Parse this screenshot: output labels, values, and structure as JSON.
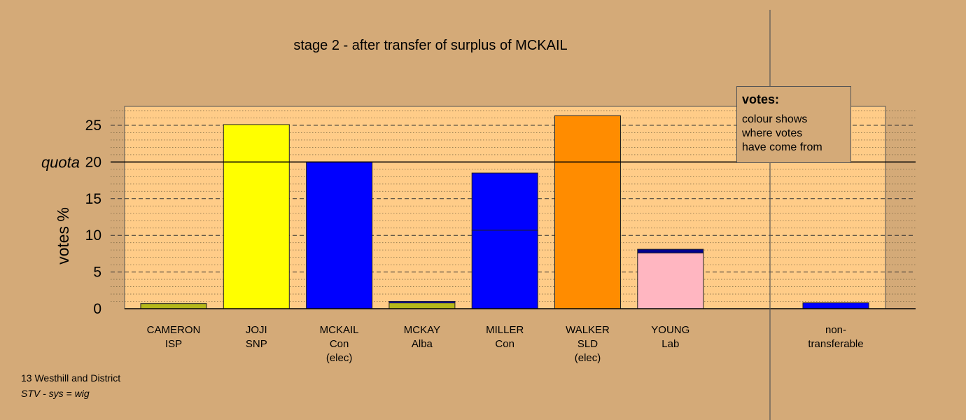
{
  "chart_data": {
    "type": "bar",
    "title": "stage 2 - after transfer of surplus of MCKAIL",
    "ylabel": "votes %",
    "quota_label": "quota",
    "quota": 20,
    "ylim": [
      0,
      27.5
    ],
    "yticks": [
      0,
      5,
      10,
      15,
      20,
      25
    ],
    "grid": true,
    "candidates": [
      {
        "name": "CAMERON",
        "party": "ISP",
        "note": "",
        "segments": [
          {
            "value": 0.7,
            "color": "#b5b81c"
          }
        ]
      },
      {
        "name": "JOJI",
        "party": "SNP",
        "note": "",
        "segments": [
          {
            "value": 25.1,
            "color": "#ffff00"
          }
        ]
      },
      {
        "name": "MCKAIL",
        "party": "Con",
        "note": "(elec)",
        "segments": [
          {
            "value": 20.0,
            "color": "#0000ff"
          }
        ]
      },
      {
        "name": "MCKAY",
        "party": "Alba",
        "note": "",
        "segments": [
          {
            "value": 0.8,
            "color": "#b5b81c"
          },
          {
            "value": 0.2,
            "color": "#0000ff"
          }
        ]
      },
      {
        "name": "MILLER",
        "party": "Con",
        "note": "",
        "segments": [
          {
            "value": 10.7,
            "color": "#0000ff"
          },
          {
            "value": 7.8,
            "color": "#0000ff"
          }
        ]
      },
      {
        "name": "WALKER",
        "party": "SLD",
        "note": "(elec)",
        "segments": [
          {
            "value": 26.3,
            "color": "#ff8c00"
          }
        ]
      },
      {
        "name": "YOUNG",
        "party": "Lab",
        "note": "",
        "segments": [
          {
            "value": 7.6,
            "color": "#ffb6c1"
          },
          {
            "value": 0.5,
            "color": "#00008b"
          }
        ]
      }
    ],
    "non_transferable": {
      "label_line1": "non-",
      "label_line2": "transferable",
      "value": 0.8,
      "color": "#0000ff"
    }
  },
  "legend": {
    "title": "votes:",
    "body": "colour shows\nwhere votes\nhave come from"
  },
  "footer": {
    "ward": "13 Westhill and District",
    "system": "STV - sys = wig"
  },
  "colors": {
    "background": "#d4aa78",
    "plot_area": "#ffcc88"
  }
}
